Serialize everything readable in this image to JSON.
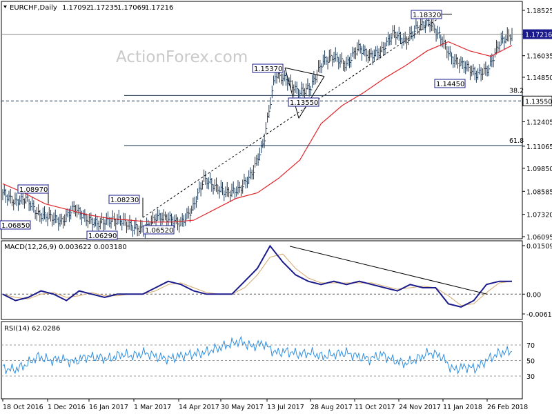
{
  "header": {
    "symbol": "EURCHF,Daily",
    "open": "1.17092",
    "high": "1.17235",
    "low": "1.17069",
    "close": "1.17216"
  },
  "watermark": "ActionForex.com",
  "colors": {
    "ema": "#e0242a",
    "macd_line": "#1a1a8c",
    "macd_signal": "#d4a86a",
    "rsi": "#2f8fe0",
    "price_label_bg": "#1a1a8c",
    "bars": "#1f3a56"
  },
  "chart_data": [
    {
      "type": "ohlc",
      "name": "price",
      "current_price": 1.17216,
      "current_price_label": "1.17216",
      "ylim": [
        1.06095,
        1.18525
      ],
      "y_ticks": [
        "1.18525",
        "1.17216",
        "1.16035",
        "1.14850",
        "1.13550",
        "1.12405",
        "1.11065",
        "1.09850",
        "1.08585",
        "1.07320",
        "1.06095"
      ],
      "x_ticks": [
        "18 Oct 2016",
        "1 Dec 2016",
        "16 Jan 2017",
        "1 Mar 2017",
        "14 Apr 2017",
        "30 May 2017",
        "13 Jul 2017",
        "28 Aug 2017",
        "11 Oct 2017",
        "24 Nov 2017",
        "11 Jan 2018",
        "26 Feb 2018"
      ],
      "close_path": [
        1.085,
        1.08,
        1.082,
        1.073,
        1.072,
        1.069,
        1.077,
        1.071,
        1.068,
        1.07,
        1.07,
        1.066,
        1.065,
        1.072,
        1.071,
        1.068,
        1.076,
        1.093,
        1.088,
        1.085,
        1.087,
        1.095,
        1.112,
        1.15,
        1.147,
        1.14,
        1.143,
        1.157,
        1.16,
        1.155,
        1.165,
        1.16,
        1.163,
        1.173,
        1.168,
        1.176,
        1.179,
        1.17,
        1.158,
        1.155,
        1.15,
        1.153,
        1.168,
        1.172
      ],
      "ema_path": [
        1.09,
        1.085,
        1.079,
        1.076,
        1.073,
        1.071,
        1.07,
        1.069,
        1.069,
        1.07,
        1.076,
        1.082,
        1.085,
        1.093,
        1.103,
        1.123,
        1.133,
        1.14,
        1.148,
        1.155,
        1.163,
        1.168,
        1.163,
        1.16,
        1.166
      ],
      "price_labels": [
        "1.08970",
        "1.06850",
        "1.08230",
        "1.06290",
        "1.06520",
        "1.15370",
        "1.13550",
        "1.18320",
        "1.14450"
      ],
      "fib_levels": [
        {
          "label": "38.2",
          "value": 1.1385
        },
        {
          "label": "61.8",
          "value": 1.111
        }
      ],
      "support_level": 1.1355,
      "support_label": "1.13550"
    },
    {
      "type": "line",
      "name": "MACD(12,26,9)",
      "title": "MACD(12,26,9) 0.003622 0.003180",
      "ylim": [
        -0.00616,
        0.01509
      ],
      "y_ticks": [
        "0.015092",
        "0.00",
        "-0.006163"
      ],
      "macd_line": [
        0.0,
        -0.002,
        -0.001,
        0.001,
        0.0,
        -0.002,
        0.001,
        0.0,
        -0.001,
        0.0,
        0.0,
        0.0,
        0.002,
        0.004,
        0.003,
        0.001,
        0.0,
        0.0,
        0.0,
        0.004,
        0.008,
        0.015,
        0.01,
        0.006,
        0.004,
        0.003,
        0.004,
        0.003,
        0.004,
        0.003,
        0.002,
        0.001,
        0.003,
        0.002,
        0.002,
        -0.003,
        -0.004,
        -0.002,
        0.003,
        0.004,
        0.004
      ],
      "trendline_label": "downtrend"
    },
    {
      "type": "line",
      "name": "RSI(14)",
      "title": "RSI(14) 62.0286",
      "ylim": [
        0,
        100
      ],
      "y_ticks": [
        "70",
        "50",
        "30"
      ],
      "rsi_path": [
        40,
        38,
        45,
        55,
        50,
        52,
        48,
        55,
        54,
        52,
        58,
        56,
        60,
        55,
        52,
        56,
        58,
        60,
        65,
        70,
        75,
        68,
        72,
        60,
        62,
        58,
        60,
        55,
        58,
        60,
        55,
        52,
        58,
        50,
        46,
        52,
        60,
        56,
        38,
        42,
        40,
        52,
        60,
        62
      ]
    }
  ]
}
